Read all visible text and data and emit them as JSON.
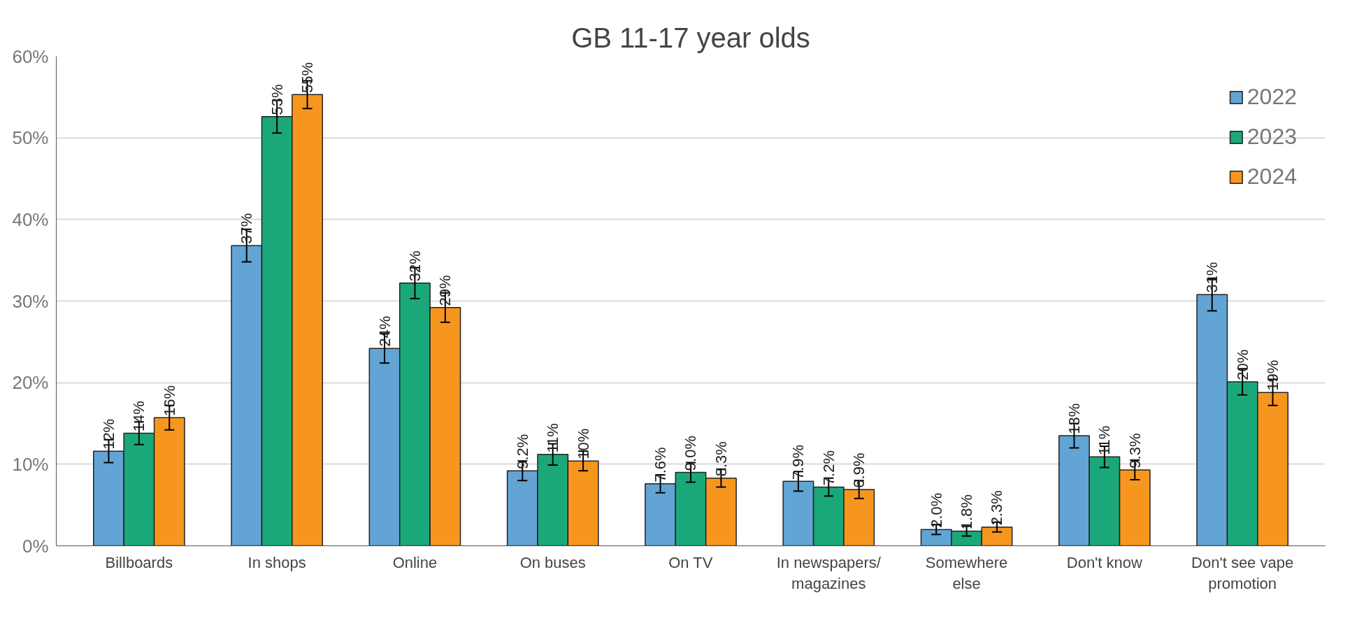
{
  "chart_data": {
    "type": "bar",
    "title": "GB 11-17 year olds",
    "categories": [
      "Billboards",
      "In shops",
      "Online",
      "On buses",
      "On TV",
      "In newspapers/\nmagazines",
      "Somewhere\nelse",
      "Don't know",
      "Don't see vape\npromotion"
    ],
    "series": [
      {
        "name": "2022",
        "color": "#62a4d4",
        "values": [
          11.6,
          36.8,
          24.2,
          9.2,
          7.6,
          7.9,
          2.0,
          13.5,
          30.8
        ],
        "errors": [
          1.4,
          2.0,
          1.8,
          1.2,
          1.1,
          1.2,
          0.6,
          1.5,
          2.0
        ],
        "value_labels": [
          "12%",
          "37%",
          "24%",
          "9.2%",
          "7.6%",
          "7.9%",
          "2.0%",
          "13%",
          "31%"
        ]
      },
      {
        "name": "2023",
        "color": "#1aa87a",
        "values": [
          13.8,
          52.6,
          32.2,
          11.2,
          9.0,
          7.2,
          1.8,
          10.9,
          20.1
        ],
        "errors": [
          1.4,
          2.0,
          1.9,
          1.3,
          1.2,
          1.1,
          0.6,
          1.3,
          1.6
        ],
        "value_labels": [
          "14%",
          "53%",
          "32%",
          "11%",
          "9.0%",
          "7.2%",
          "1.8%",
          "11%",
          "20%"
        ]
      },
      {
        "name": "2024",
        "color": "#f7961e",
        "values": [
          15.7,
          55.3,
          29.2,
          10.4,
          8.3,
          6.9,
          2.3,
          9.3,
          18.8
        ],
        "errors": [
          1.5,
          1.7,
          1.8,
          1.2,
          1.1,
          1.1,
          0.6,
          1.2,
          1.6
        ],
        "value_labels": [
          "16%",
          "55%",
          "29%",
          "10%",
          "8.3%",
          "6.9%",
          "2.3%",
          "9.3%",
          "19%"
        ]
      }
    ],
    "ylim": [
      0,
      60
    ],
    "yticks": [
      {
        "value": 0,
        "label": "0%"
      },
      {
        "value": 10,
        "label": "10%"
      },
      {
        "value": 20,
        "label": "20%"
      },
      {
        "value": 30,
        "label": "30%"
      },
      {
        "value": 40,
        "label": "40%"
      },
      {
        "value": 50,
        "label": "50%"
      },
      {
        "value": 60,
        "label": "60%"
      }
    ],
    "grid": "y",
    "legend": "top right"
  }
}
